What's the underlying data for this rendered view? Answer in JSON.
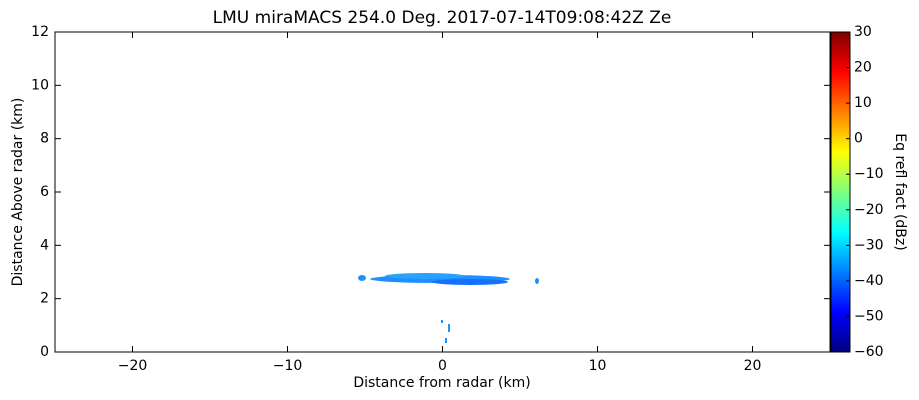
{
  "chart_data": {
    "type": "rhi",
    "title": "LMU miraMACS 254.0 Deg. 2017-07-14T09:08:42Z  Ze",
    "x_label": "Distance from radar (km)",
    "y_label": "Distance Above radar  (km)",
    "xlim": [
      -25,
      25
    ],
    "xticks": [
      {
        "value": -20,
        "label": "−20"
      },
      {
        "value": -10,
        "label": "−10"
      },
      0,
      10,
      20
    ],
    "ylim": [
      0,
      12
    ],
    "yticks": [
      0,
      2,
      4,
      6,
      8,
      10,
      12
    ],
    "colorbar": {
      "label": "Eq refl fact (dBz)",
      "lim": [
        -60,
        30
      ],
      "ticks": [
        {
          "value": -60,
          "label": "−60"
        },
        {
          "value": -50,
          "label": "−50"
        },
        {
          "value": -40,
          "label": "−40"
        },
        {
          "value": -30,
          "label": "−30"
        },
        {
          "value": -20,
          "label": "−20"
        },
        {
          "value": -10,
          "label": "−10"
        },
        0,
        10,
        20,
        30
      ]
    }
  }
}
